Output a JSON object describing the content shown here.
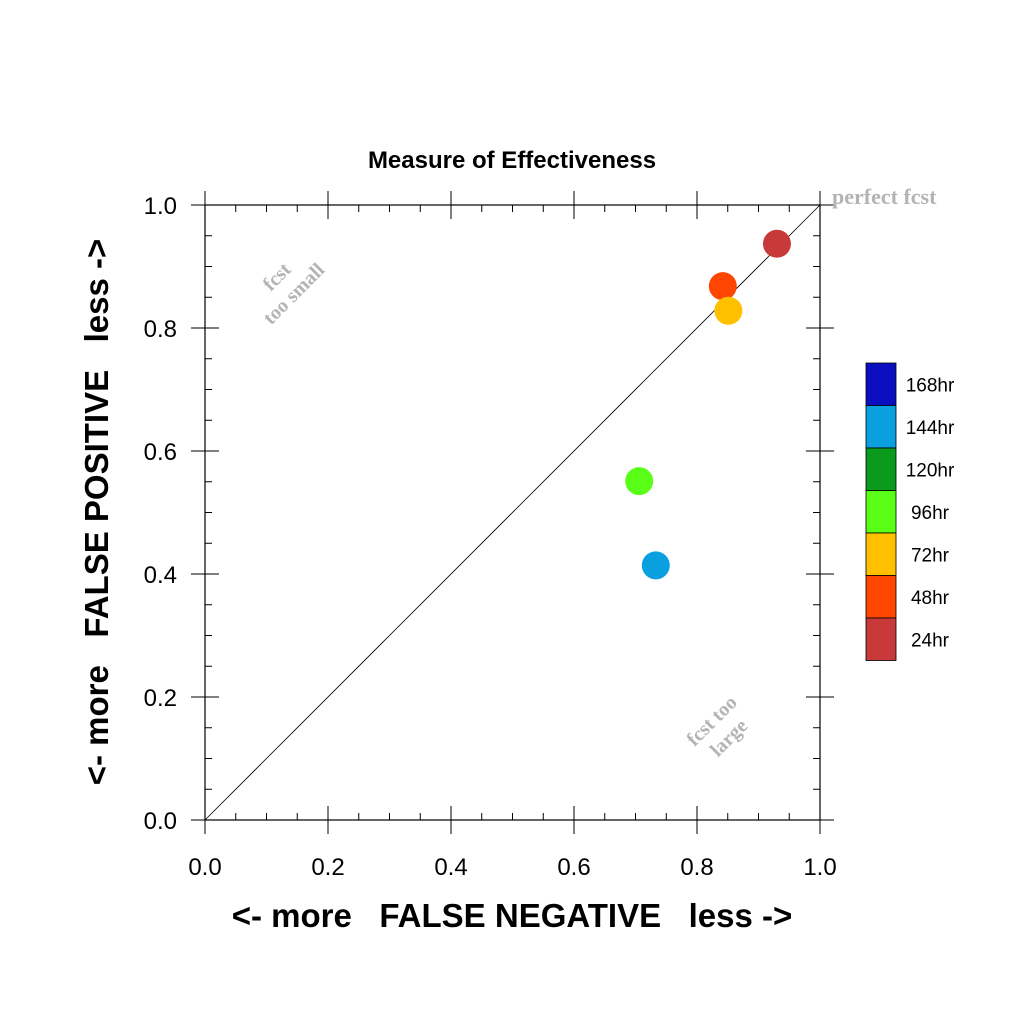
{
  "chart_data": {
    "type": "scatter",
    "title": "Measure of Effectiveness",
    "xlabel": "<- more   FALSE NEGATIVE   less ->",
    "ylabel": "<- more   FALSE POSITIVE   less ->",
    "xlim": [
      0.0,
      1.0
    ],
    "ylim": [
      0.0,
      1.0
    ],
    "x_ticks": [
      "0.0",
      "0.2",
      "0.4",
      "0.6",
      "0.8",
      "1.0"
    ],
    "y_ticks": [
      "0.0",
      "0.2",
      "0.4",
      "0.6",
      "0.8",
      "1.0"
    ],
    "reference_line": "diagonal",
    "annotations": {
      "top_right": "perfect fcst",
      "upper_left_line1": "fcst",
      "upper_left_line2": "too small",
      "lower_right_line1": "fcst too",
      "lower_right_line2": "large"
    },
    "legend": {
      "placement": "right",
      "entries": [
        {
          "label": "168hr",
          "color": "#0a0ec0"
        },
        {
          "label": "144hr",
          "color": "#0aa0e0"
        },
        {
          "label": "120hr",
          "color": "#0a9a1e"
        },
        {
          "label": "96hr",
          "color": "#5aff18"
        },
        {
          "label": "72hr",
          "color": "#ffc000"
        },
        {
          "label": "48hr",
          "color": "#ff4600"
        },
        {
          "label": "24hr",
          "color": "#c83a3a"
        }
      ]
    },
    "points": [
      {
        "series": "24hr",
        "x": 0.93,
        "y": 0.937,
        "color": "#c83a3a"
      },
      {
        "series": "48hr",
        "x": 0.842,
        "y": 0.868,
        "color": "#ff4600"
      },
      {
        "series": "72hr",
        "x": 0.851,
        "y": 0.828,
        "color": "#ffc000"
      },
      {
        "series": "96hr",
        "x": 0.706,
        "y": 0.551,
        "color": "#5aff18"
      },
      {
        "series": "144hr",
        "x": 0.733,
        "y": 0.414,
        "color": "#0aa0e0"
      }
    ]
  }
}
